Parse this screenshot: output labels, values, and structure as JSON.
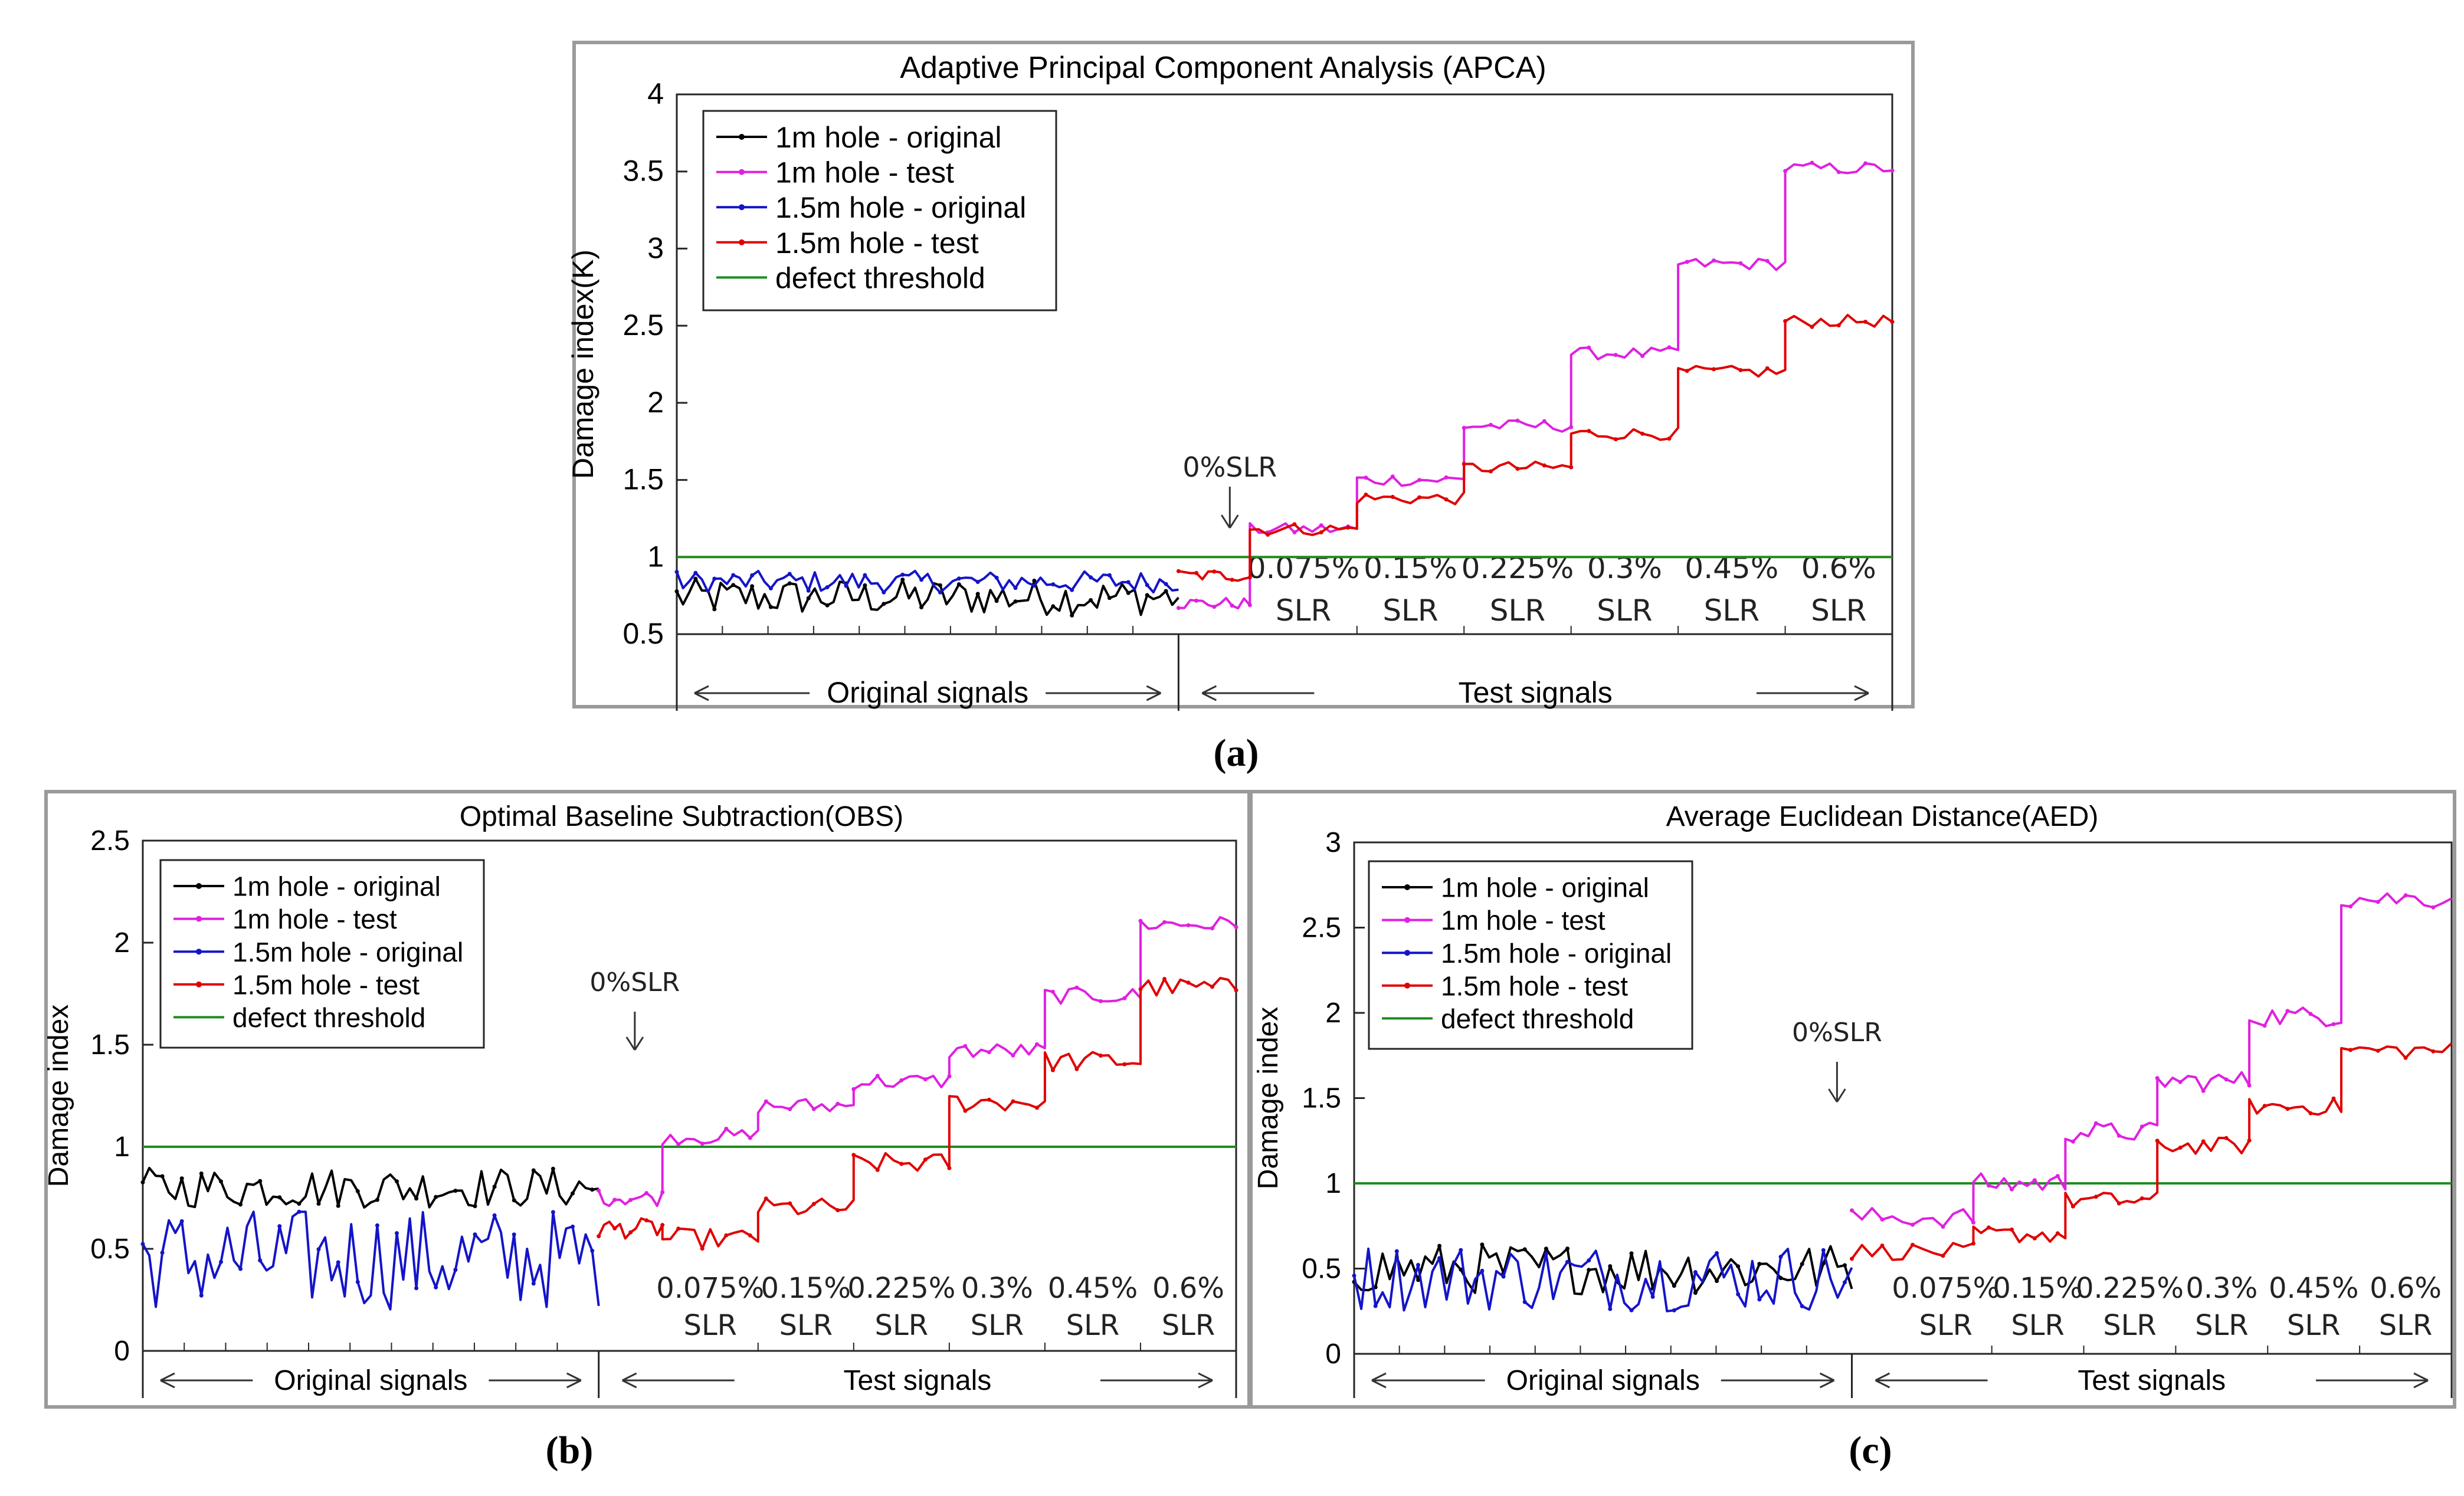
{
  "panels": [
    {
      "id": "a",
      "caption": "(a)",
      "chart_data": {
        "type": "line",
        "title": "Adaptive Principal Component Analysis (APCA)",
        "xlabel": "",
        "ylabel": "Damage index(K)",
        "ylim": [
          0.5,
          4
        ],
        "yticks": [
          0.5,
          1,
          1.5,
          2,
          2.5,
          3,
          3.5,
          4
        ],
        "x_segments": [
          "Original signals",
          "Test signals"
        ],
        "zero_marker": "0%SLR",
        "slr_labels": [
          "0.075%",
          "0.15%",
          "0.225%",
          "0.3%",
          "0.45%",
          "0.6%"
        ],
        "slr_unit": "SLR",
        "threshold": 1.0,
        "legend": [
          "1m hole - original",
          "1m hole - test",
          "1.5m hole - original",
          "1.5m hole - test",
          "defect threshold"
        ],
        "colors": {
          "orig1": "#000000",
          "test1": "#e020e0",
          "orig15": "#1414c8",
          "test15": "#e00000",
          "threshold": "#1e8c1e"
        },
        "series": [
          {
            "name": "1m hole - original",
            "segment": "original",
            "mean": 0.74,
            "amp": 0.12
          },
          {
            "name": "1.5m hole - original",
            "segment": "original",
            "mean": 0.84,
            "amp": 0.07
          },
          {
            "name": "1m hole - test",
            "segment": "test",
            "levels": [
              0.7,
              1.18,
              1.5,
              1.85,
              2.32,
              2.9,
              3.52
            ],
            "noise": 0.04
          },
          {
            "name": "1.5m hole - test",
            "segment": "test",
            "levels": [
              0.88,
              1.18,
              1.38,
              1.58,
              1.8,
              2.2,
              2.53
            ],
            "noise": 0.04
          }
        ]
      }
    },
    {
      "id": "b",
      "caption": "(b)",
      "chart_data": {
        "type": "line",
        "title": "Optimal Baseline Subtraction(OBS)",
        "xlabel": "",
        "ylabel": "Damage index",
        "ylim": [
          0,
          2.5
        ],
        "yticks": [
          0,
          0.5,
          1,
          1.5,
          2,
          2.5
        ],
        "x_segments": [
          "Original signals",
          "Test signals"
        ],
        "zero_marker": "0%SLR",
        "slr_labels": [
          "0.075%",
          "0.15%",
          "0.225%",
          "0.3%",
          "0.45%",
          "0.6%"
        ],
        "slr_unit": "SLR",
        "threshold": 1.0,
        "legend": [
          "1m hole - original",
          "1m hole - test",
          "1.5m hole - original",
          "1.5m hole - test",
          "defect threshold"
        ],
        "colors": {
          "orig1": "#000000",
          "test1": "#e020e0",
          "orig15": "#1414c8",
          "test15": "#e00000",
          "threshold": "#1e8c1e"
        },
        "series": [
          {
            "name": "1m hole - original",
            "segment": "original",
            "mean": 0.8,
            "amp": 0.1
          },
          {
            "name": "1.5m hole - original",
            "segment": "original",
            "mean": 0.45,
            "amp": 0.25
          },
          {
            "name": "1m hole - test",
            "segment": "test",
            "levels": [
              0.75,
              1.05,
              1.2,
              1.32,
              1.47,
              1.74,
              2.09
            ],
            "noise": 0.04
          },
          {
            "name": "1.5m hole - test",
            "segment": "test",
            "levels": [
              0.6,
              0.55,
              0.7,
              0.92,
              1.22,
              1.42,
              1.78
            ],
            "noise": 0.05
          }
        ]
      }
    },
    {
      "id": "c",
      "caption": "(c)",
      "chart_data": {
        "type": "line",
        "title": "Average Euclidean Distance(AED)",
        "xlabel": "",
        "ylabel": "Damage index",
        "ylim": [
          0,
          3
        ],
        "yticks": [
          0,
          0.5,
          1,
          1.5,
          2,
          2.5,
          3
        ],
        "x_segments": [
          "Original signals",
          "Test signals"
        ],
        "zero_marker": "0%SLR",
        "slr_labels": [
          "0.075%",
          "0.15%",
          "0.225%",
          "0.3%",
          "0.45%",
          "0.6%"
        ],
        "slr_unit": "SLR",
        "threshold": 1.0,
        "legend": [
          "1m hole - original",
          "1m hole - test",
          "1.5m hole - original",
          "1.5m hole - test",
          "defect threshold"
        ],
        "colors": {
          "orig1": "#000000",
          "test1": "#e020e0",
          "orig15": "#1414c8",
          "test15": "#e00000",
          "threshold": "#1e8c1e"
        },
        "series": [
          {
            "name": "1m hole - original",
            "segment": "original",
            "mean": 0.5,
            "amp": 0.15
          },
          {
            "name": "1.5m hole - original",
            "segment": "original",
            "mean": 0.45,
            "amp": 0.2
          },
          {
            "name": "1m hole - test",
            "segment": "test",
            "levels": [
              0.8,
              1.0,
              1.3,
              1.6,
              1.98,
              2.67
            ],
            "noise": 0.06
          },
          {
            "name": "1.5m hole - test",
            "segment": "test",
            "levels": [
              0.6,
              0.7,
              0.9,
              1.22,
              1.45,
              1.78
            ],
            "noise": 0.05
          }
        ]
      }
    }
  ]
}
